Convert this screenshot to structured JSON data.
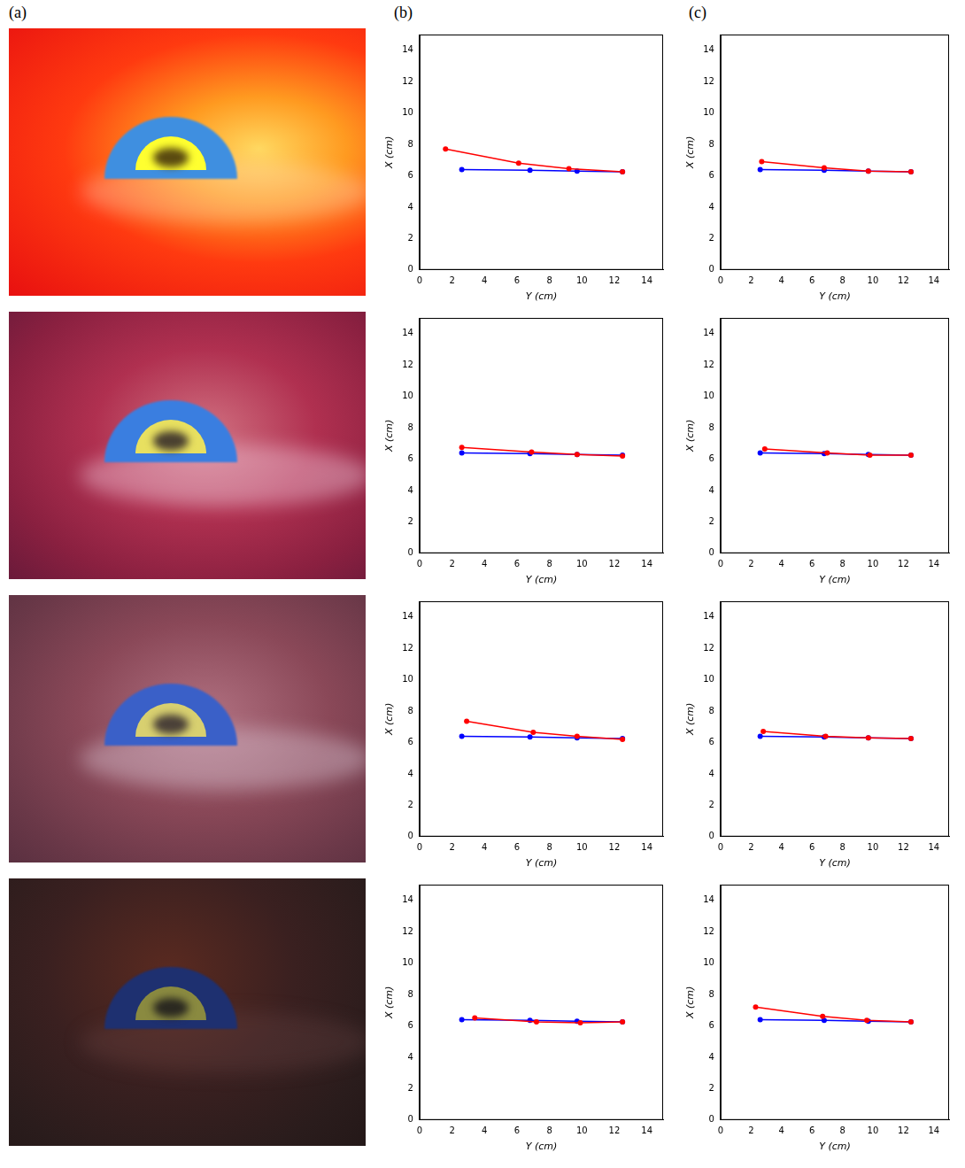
{
  "panel_labels": [
    "(a)",
    "(b)",
    "(c)"
  ],
  "chart_data": [
    {
      "type": "line",
      "x_label": "Y (cm)",
      "y_label": "X (cm)",
      "xlim": [
        0,
        15
      ],
      "ylim": [
        0,
        15
      ],
      "xticks": [
        0,
        2,
        4,
        6,
        8,
        10,
        12,
        14
      ],
      "yticks": [
        0,
        2,
        4,
        6,
        8,
        10,
        12,
        14
      ],
      "grid": false,
      "series": [
        {
          "color": "#ff0000",
          "marker": "circle",
          "line_style": "solid",
          "x": [
            1.6,
            6.1,
            9.2,
            12.5
          ],
          "values": [
            7.7,
            6.8,
            6.45,
            6.25
          ]
        },
        {
          "color": "#0000ff",
          "marker": "circle",
          "line_style": "solid",
          "x": [
            2.6,
            6.8,
            9.7,
            12.5
          ],
          "values": [
            6.4,
            6.35,
            6.3,
            6.25
          ]
        }
      ]
    },
    {
      "type": "line",
      "x_label": "Y (cm)",
      "y_label": "X (cm)",
      "xlim": [
        0,
        15
      ],
      "ylim": [
        0,
        15
      ],
      "xticks": [
        0,
        2,
        4,
        6,
        8,
        10,
        12,
        14
      ],
      "yticks": [
        0,
        2,
        4,
        6,
        8,
        10,
        12,
        14
      ],
      "grid": false,
      "series": [
        {
          "color": "#ff0000",
          "marker": "circle",
          "line_style": "solid",
          "x": [
            2.6,
            6.9,
            9.7,
            12.5
          ],
          "values": [
            6.75,
            6.45,
            6.3,
            6.2
          ]
        },
        {
          "color": "#0000ff",
          "marker": "circle",
          "line_style": "solid",
          "x": [
            2.6,
            6.8,
            9.7,
            12.5
          ],
          "values": [
            6.4,
            6.35,
            6.3,
            6.25
          ]
        }
      ]
    },
    {
      "type": "line",
      "x_label": "Y (cm)",
      "y_label": "X (cm)",
      "xlim": [
        0,
        15
      ],
      "ylim": [
        0,
        15
      ],
      "xticks": [
        0,
        2,
        4,
        6,
        8,
        10,
        12,
        14
      ],
      "yticks": [
        0,
        2,
        4,
        6,
        8,
        10,
        12,
        14
      ],
      "grid": false,
      "series": [
        {
          "color": "#ff0000",
          "marker": "circle",
          "line_style": "solid",
          "x": [
            2.9,
            7.0,
            9.7,
            12.5
          ],
          "values": [
            7.35,
            6.65,
            6.4,
            6.2
          ]
        },
        {
          "color": "#0000ff",
          "marker": "circle",
          "line_style": "solid",
          "x": [
            2.6,
            6.8,
            9.7,
            12.5
          ],
          "values": [
            6.4,
            6.35,
            6.3,
            6.25
          ]
        }
      ]
    },
    {
      "type": "line",
      "x_label": "Y (cm)",
      "y_label": "X (cm)",
      "xlim": [
        0,
        15
      ],
      "ylim": [
        0,
        15
      ],
      "xticks": [
        0,
        2,
        4,
        6,
        8,
        10,
        12,
        14
      ],
      "yticks": [
        0,
        2,
        4,
        6,
        8,
        10,
        12,
        14
      ],
      "grid": false,
      "series": [
        {
          "color": "#ff0000",
          "marker": "circle",
          "line_style": "solid",
          "x": [
            3.4,
            7.2,
            9.9,
            12.5
          ],
          "values": [
            6.5,
            6.25,
            6.2,
            6.25
          ]
        },
        {
          "color": "#0000ff",
          "marker": "circle",
          "line_style": "solid",
          "x": [
            2.6,
            6.8,
            9.7,
            12.5
          ],
          "values": [
            6.4,
            6.35,
            6.3,
            6.25
          ]
        }
      ]
    },
    {
      "type": "line",
      "x_label": "Y (cm)",
      "y_label": "X (cm)",
      "xlim": [
        0,
        15
      ],
      "ylim": [
        0,
        15
      ],
      "xticks": [
        0,
        2,
        4,
        6,
        8,
        10,
        12,
        14
      ],
      "yticks": [
        0,
        2,
        4,
        6,
        8,
        10,
        12,
        14
      ],
      "grid": false,
      "series": [
        {
          "color": "#ff0000",
          "marker": "circle",
          "line_style": "solid",
          "x": [
            2.7,
            6.8,
            9.7,
            12.5
          ],
          "values": [
            6.9,
            6.5,
            6.3,
            6.25
          ]
        },
        {
          "color": "#0000ff",
          "marker": "circle",
          "line_style": "solid",
          "x": [
            2.6,
            6.8,
            9.7,
            12.5
          ],
          "values": [
            6.4,
            6.35,
            6.3,
            6.25
          ]
        }
      ]
    },
    {
      "type": "line",
      "x_label": "Y (cm)",
      "y_label": "X (cm)",
      "xlim": [
        0,
        15
      ],
      "ylim": [
        0,
        15
      ],
      "xticks": [
        0,
        2,
        4,
        6,
        8,
        10,
        12,
        14
      ],
      "yticks": [
        0,
        2,
        4,
        6,
        8,
        10,
        12,
        14
      ],
      "grid": false,
      "series": [
        {
          "color": "#ff0000",
          "marker": "circle",
          "line_style": "solid",
          "x": [
            2.9,
            7.0,
            9.8,
            12.5
          ],
          "values": [
            6.65,
            6.4,
            6.25,
            6.25
          ]
        },
        {
          "color": "#0000ff",
          "marker": "circle",
          "line_style": "solid",
          "x": [
            2.6,
            6.8,
            9.7,
            12.5
          ],
          "values": [
            6.4,
            6.35,
            6.3,
            6.25
          ]
        }
      ]
    },
    {
      "type": "line",
      "x_label": "Y (cm)",
      "y_label": "X (cm)",
      "xlim": [
        0,
        15
      ],
      "ylim": [
        0,
        15
      ],
      "xticks": [
        0,
        2,
        4,
        6,
        8,
        10,
        12,
        14
      ],
      "yticks": [
        0,
        2,
        4,
        6,
        8,
        10,
        12,
        14
      ],
      "grid": false,
      "series": [
        {
          "color": "#ff0000",
          "marker": "circle",
          "line_style": "solid",
          "x": [
            2.8,
            6.9,
            9.7,
            12.5
          ],
          "values": [
            6.7,
            6.4,
            6.3,
            6.25
          ]
        },
        {
          "color": "#0000ff",
          "marker": "circle",
          "line_style": "solid",
          "x": [
            2.6,
            6.8,
            9.7,
            12.5
          ],
          "values": [
            6.4,
            6.35,
            6.3,
            6.25
          ]
        }
      ]
    },
    {
      "type": "line",
      "x_label": "Y (cm)",
      "y_label": "X (cm)",
      "xlim": [
        0,
        15
      ],
      "ylim": [
        0,
        15
      ],
      "xticks": [
        0,
        2,
        4,
        6,
        8,
        10,
        12,
        14
      ],
      "yticks": [
        0,
        2,
        4,
        6,
        8,
        10,
        12,
        14
      ],
      "grid": false,
      "series": [
        {
          "color": "#ff0000",
          "marker": "circle",
          "line_style": "solid",
          "x": [
            2.3,
            6.7,
            9.6,
            12.5
          ],
          "values": [
            7.2,
            6.6,
            6.35,
            6.25
          ]
        },
        {
          "color": "#0000ff",
          "marker": "circle",
          "line_style": "solid",
          "x": [
            2.6,
            6.8,
            9.7,
            12.5
          ],
          "values": [
            6.4,
            6.35,
            6.3,
            6.25
          ]
        }
      ]
    }
  ]
}
